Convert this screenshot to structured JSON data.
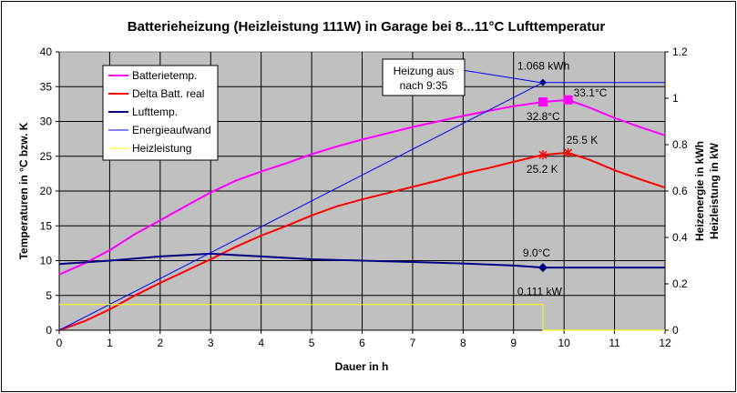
{
  "chart_data": {
    "type": "line",
    "title": "Batterieheizung (Heizleistung 111W) in Garage bei 8...11°C Lufttemperatur",
    "xlabel": "Dauer in h",
    "ylabel": "Temperaturen in °C bzw. K",
    "y2label_line1": "Heizenergie in kWh",
    "y2label_line2": "Heizleistung in kW",
    "xlim": [
      0,
      12
    ],
    "ylim": [
      0,
      40
    ],
    "y2lim": [
      0,
      1.2
    ],
    "x_ticks": [
      "0",
      "1",
      "2",
      "3",
      "4",
      "5",
      "6",
      "7",
      "8",
      "9",
      "10",
      "11",
      "12"
    ],
    "y_ticks": [
      "0",
      "5",
      "10",
      "15",
      "20",
      "25",
      "30",
      "35",
      "40"
    ],
    "y2_ticks": [
      "0",
      "0.2",
      "0.4",
      "0.6",
      "0.8",
      "1",
      "1.2"
    ],
    "grid": true,
    "legend_position": "top-left",
    "series": [
      {
        "name": "Batterietemp.",
        "color": "#ff00ff",
        "axis": "left",
        "x": [
          0,
          0.5,
          1,
          1.5,
          2,
          2.5,
          3,
          3.5,
          4,
          4.5,
          5,
          5.5,
          6,
          6.5,
          7,
          7.5,
          8,
          8.5,
          9,
          9.58,
          10.08,
          10.5,
          11,
          11.5,
          12
        ],
        "values": [
          8.0,
          9.6,
          11.5,
          13.8,
          15.8,
          17.8,
          19.8,
          21.5,
          22.8,
          24.0,
          25.3,
          26.4,
          27.4,
          28.3,
          29.2,
          30.0,
          30.8,
          31.5,
          32.2,
          32.8,
          33.1,
          32.0,
          30.5,
          29.2,
          28.0
        ]
      },
      {
        "name": "Delta Batt. real",
        "color": "#ff0000",
        "axis": "left",
        "x": [
          0,
          0.5,
          1,
          1.5,
          2,
          2.5,
          3,
          3.5,
          4,
          4.5,
          5,
          5.5,
          6,
          6.5,
          7,
          7.5,
          8,
          8.5,
          9,
          9.58,
          10.08,
          10.5,
          11,
          11.5,
          12
        ],
        "values": [
          0,
          1.3,
          3.0,
          5.0,
          6.8,
          8.5,
          10.2,
          12.0,
          13.6,
          15.0,
          16.5,
          17.8,
          18.8,
          19.7,
          20.6,
          21.5,
          22.5,
          23.3,
          24.2,
          25.2,
          25.5,
          24.5,
          23.0,
          21.7,
          20.5
        ]
      },
      {
        "name": "Lufttemp.",
        "color": "#000080",
        "axis": "left",
        "x": [
          0,
          1,
          2,
          3,
          4,
          5,
          6,
          7,
          8,
          9,
          9.58,
          10,
          11,
          12
        ],
        "values": [
          9.5,
          10.0,
          10.6,
          11.0,
          10.6,
          10.2,
          10.0,
          9.8,
          9.6,
          9.3,
          9.0,
          9.0,
          9.0,
          9.0
        ]
      },
      {
        "name": "Energieaufwand",
        "color": "#0000ff",
        "axis": "right",
        "x": [
          0,
          9.58,
          12
        ],
        "values": [
          0,
          1.068,
          1.068
        ]
      },
      {
        "name": "Heizleistung",
        "color": "#ffff00",
        "axis": "right",
        "x": [
          0,
          9.58,
          9.58,
          12
        ],
        "values": [
          0.111,
          0.111,
          0,
          0
        ]
      }
    ],
    "annotations": [
      {
        "text": "1.068 kWh",
        "x": 9.58,
        "y": 1.068,
        "axis": "right"
      },
      {
        "text": "33.1°C",
        "x": 10.08,
        "y": 33.1,
        "axis": "left"
      },
      {
        "text": "32.8°C",
        "x": 9.58,
        "y": 32.8,
        "axis": "left"
      },
      {
        "text": "25.5 K",
        "x": 10.08,
        "y": 25.5,
        "axis": "left"
      },
      {
        "text": "25.2 K",
        "x": 9.58,
        "y": 25.2,
        "axis": "left"
      },
      {
        "text": "9.0°C",
        "x": 9.58,
        "y": 9.0,
        "axis": "left"
      },
      {
        "text": "0.111 kW",
        "x": 9.58,
        "y": 0.111,
        "axis": "right"
      }
    ],
    "callout": {
      "line1": "Heizung aus",
      "line2": "nach 9:35"
    }
  }
}
